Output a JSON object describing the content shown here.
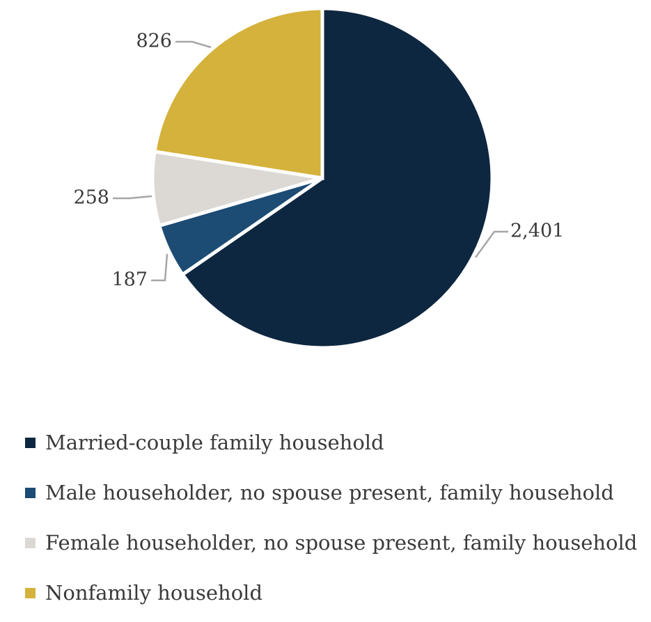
{
  "chart_data": {
    "type": "pie",
    "title": "",
    "start": "12 o'clock, clockwise",
    "slices": [
      {
        "label": "Married-couple family household",
        "value": 2401,
        "value_label": "2,401",
        "color": "#0e2740"
      },
      {
        "label": "Male householder, no spouse present, family household",
        "value": 187,
        "value_label": "187",
        "color": "#1c4b74"
      },
      {
        "label": "Female householder, no spouse present, family household",
        "value": 258,
        "value_label": "258",
        "color": "#dcd9d4"
      },
      {
        "label": "Nonfamily household",
        "value": 826,
        "value_label": "826",
        "color": "#d4b23b"
      }
    ],
    "legend_position": "bottom"
  },
  "legend": {
    "items": [
      {
        "label": "Married-couple family household",
        "color": "#0e2740"
      },
      {
        "label": "Male householder, no spouse present, family household",
        "color": "#1c4b74"
      },
      {
        "label": "Female householder, no spouse present, family household",
        "color": "#dcd9d4"
      },
      {
        "label": "Nonfamily household",
        "color": "#d4b23b"
      }
    ]
  }
}
